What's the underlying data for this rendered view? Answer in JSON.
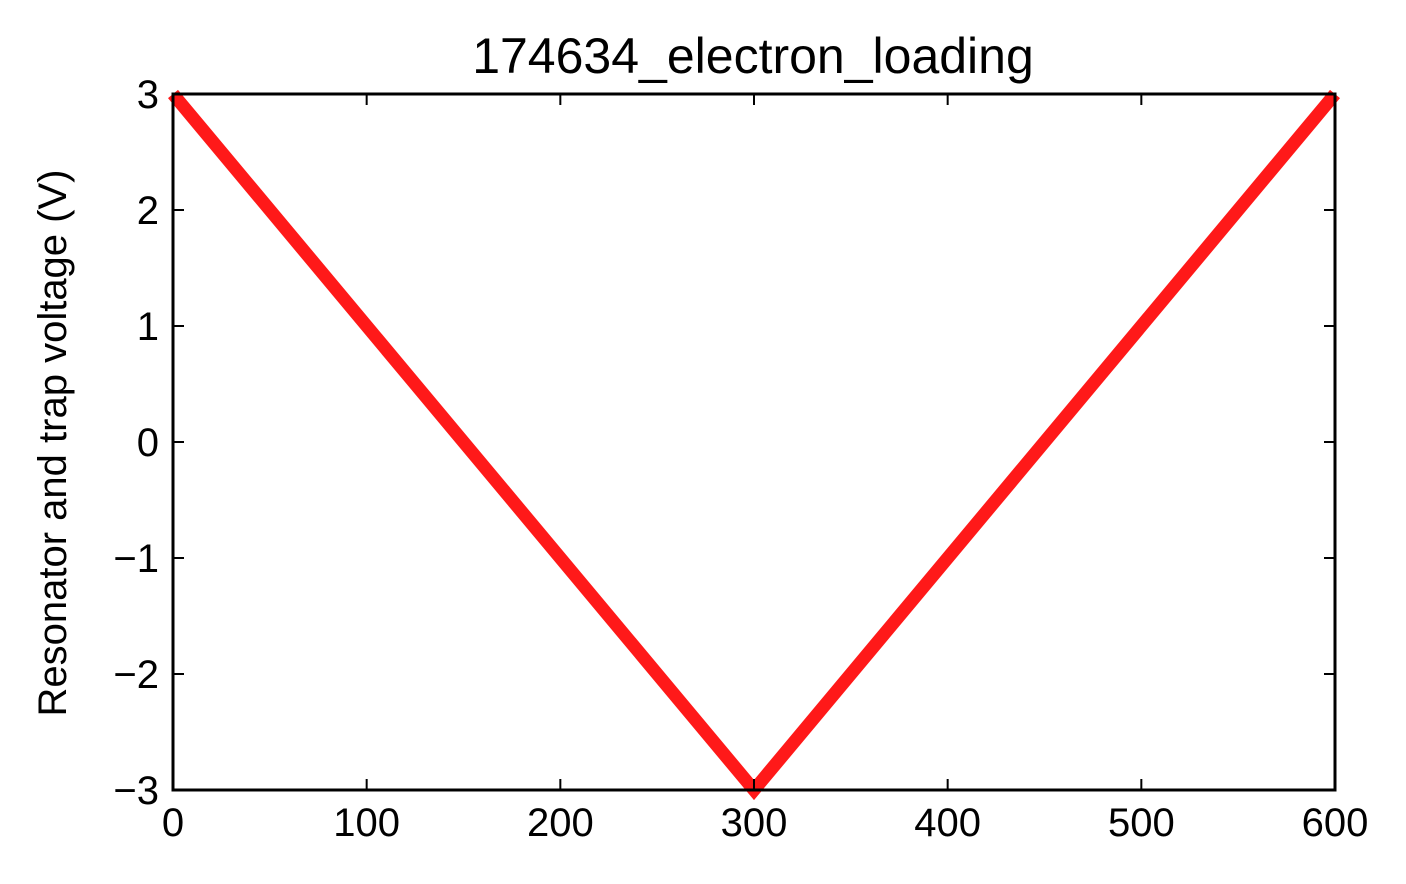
{
  "chart_data": {
    "type": "line",
    "title": "174634_electron_loading",
    "xlabel": "",
    "ylabel": "Resonator and trap voltage (V)",
    "xlim": [
      0,
      600
    ],
    "ylim": [
      -3,
      3
    ],
    "x_ticks": [
      0,
      100,
      200,
      300,
      400,
      500,
      600
    ],
    "y_ticks": [
      -3,
      -2,
      -1,
      0,
      1,
      2,
      3
    ],
    "x_tick_labels": [
      "0",
      "100",
      "200",
      "300",
      "400",
      "500",
      "600"
    ],
    "y_tick_labels": [
      "−3",
      "−2",
      "−1",
      "0",
      "1",
      "2",
      "3"
    ],
    "grid": false,
    "legend": "none",
    "series": [
      {
        "color": "#ff0000",
        "x": [
          0,
          300,
          600
        ],
        "y": [
          3,
          -3,
          3
        ]
      }
    ]
  }
}
